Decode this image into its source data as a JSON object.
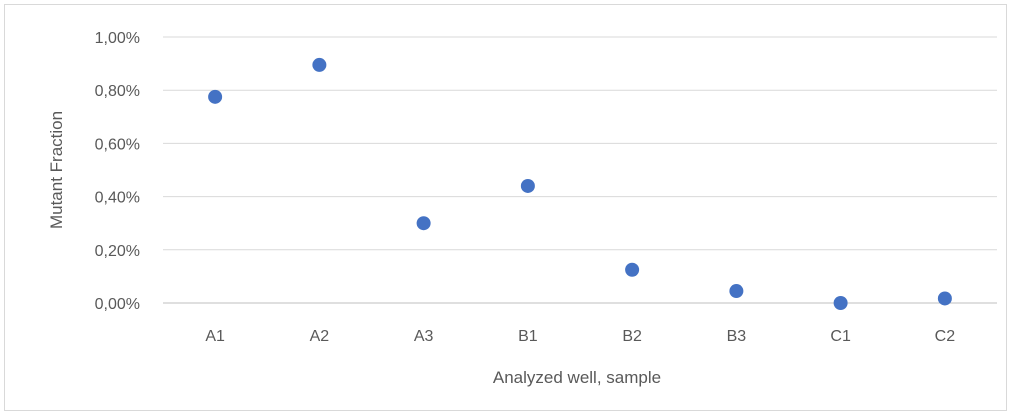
{
  "chart_data": {
    "type": "scatter",
    "title": "",
    "xlabel": "Analyzed well, sample",
    "ylabel": "Mutant Fraction",
    "categories": [
      "A1",
      "A2",
      "A3",
      "B1",
      "B2",
      "B3",
      "C1",
      "C2"
    ],
    "series": [
      {
        "values": [
          0.775,
          0.895,
          0.3,
          0.44,
          0.125,
          0.045,
          0.0,
          0.017
        ]
      }
    ],
    "ylim": [
      0,
      1
    ],
    "y_ticks": [
      "0,00%",
      "0,20%",
      "0,40%",
      "0,60%",
      "0,80%",
      "1,00%"
    ],
    "y_unit": "%",
    "grid": true,
    "legend": "none",
    "marker_color": "#4472c4"
  }
}
